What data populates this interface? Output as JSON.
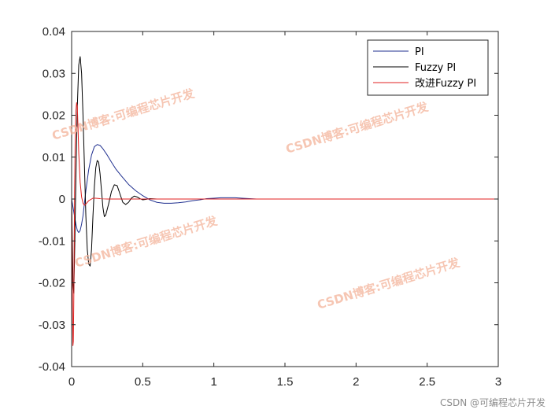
{
  "chart_data": {
    "type": "line",
    "xlim": [
      0,
      3
    ],
    "ylim": [
      -0.04,
      0.04
    ],
    "xticks": [
      0,
      0.5,
      1,
      1.5,
      2,
      2.5,
      3
    ],
    "xtick_labels": [
      "0",
      "0.5",
      "1",
      "1.5",
      "2",
      "2.5",
      "3"
    ],
    "yticks": [
      0.04,
      0.03,
      0.02,
      0.01,
      0,
      -0.01,
      -0.02,
      -0.03,
      -0.04
    ],
    "ytick_labels": [
      "0.04",
      "0.03",
      "0.02",
      "0.01",
      "0",
      "-0.01",
      "-0.02",
      "-0.03",
      "-0.04"
    ],
    "grid": false,
    "legend_position": "top-right",
    "series": [
      {
        "name": "PI",
        "color": "#1f2f8f",
        "x": [
          0,
          0.01,
          0.02,
          0.03,
          0.04,
          0.05,
          0.06,
          0.07,
          0.08,
          0.09,
          0.1,
          0.12,
          0.14,
          0.16,
          0.18,
          0.2,
          0.22,
          0.25,
          0.28,
          0.31,
          0.35,
          0.4,
          0.45,
          0.5,
          0.55,
          0.6,
          0.65,
          0.7,
          0.75,
          0.8,
          0.85,
          0.9,
          0.95,
          1.0,
          1.05,
          1.1,
          1.15,
          1.2,
          1.25,
          1.3,
          1.4,
          1.5,
          2.0,
          2.5,
          3.0
        ],
        "y": [
          0,
          -0.002,
          -0.004,
          -0.006,
          -0.0075,
          -0.008,
          -0.0075,
          -0.006,
          -0.004,
          -0.001,
          0.002,
          0.007,
          0.0105,
          0.0125,
          0.013,
          0.0128,
          0.012,
          0.0105,
          0.0088,
          0.0072,
          0.0055,
          0.0035,
          0.002,
          0.0008,
          -0.0002,
          -0.0008,
          -0.001,
          -0.001,
          -0.0009,
          -0.0007,
          -0.0004,
          -0.0002,
          0.0001,
          0.0002,
          0.0003,
          0.0003,
          0.0003,
          0.0002,
          0.0001,
          0,
          0,
          0,
          0,
          0,
          0
        ]
      },
      {
        "name": "Fuzzy PI",
        "color": "#000000",
        "x": [
          0,
          0.005,
          0.01,
          0.015,
          0.02,
          0.03,
          0.04,
          0.05,
          0.06,
          0.07,
          0.08,
          0.09,
          0.1,
          0.11,
          0.12,
          0.13,
          0.14,
          0.15,
          0.16,
          0.17,
          0.18,
          0.19,
          0.2,
          0.21,
          0.22,
          0.23,
          0.24,
          0.26,
          0.28,
          0.3,
          0.32,
          0.34,
          0.36,
          0.38,
          0.4,
          0.42,
          0.44,
          0.46,
          0.48,
          0.5,
          0.52,
          0.55,
          0.6,
          0.7,
          1.0,
          3.0
        ],
        "y": [
          0,
          -0.01,
          -0.02,
          -0.0225,
          -0.015,
          0.005,
          0.022,
          0.032,
          0.034,
          0.03,
          0.02,
          0.008,
          -0.004,
          -0.012,
          -0.0155,
          -0.016,
          -0.012,
          -0.004,
          0.003,
          0.0075,
          0.0092,
          0.0088,
          0.006,
          0.002,
          -0.002,
          -0.0042,
          -0.0038,
          -0.0012,
          0.0018,
          0.0034,
          0.0032,
          0.0012,
          -0.0008,
          -0.0013,
          -0.0008,
          0.0002,
          0.0007,
          0.0005,
          0.0001,
          -0.0002,
          -0.0001,
          0.0001,
          0,
          0,
          0,
          0
        ]
      },
      {
        "name": "改进Fuzzy PI",
        "color": "#e02020",
        "x": [
          0,
          0.003,
          0.006,
          0.009,
          0.012,
          0.015,
          0.018,
          0.021,
          0.025,
          0.03,
          0.035,
          0.04,
          0.045,
          0.05,
          0.06,
          0.07,
          0.08,
          0.09,
          0.1,
          0.11,
          0.12,
          0.13,
          0.14,
          0.15,
          0.17,
          0.2,
          0.25,
          0.3,
          0.4,
          1.0,
          3.0
        ],
        "y": [
          0,
          -0.01,
          -0.025,
          -0.035,
          -0.034,
          -0.025,
          -0.012,
          0.002,
          0.014,
          0.021,
          0.023,
          0.022,
          0.017,
          0.011,
          0.004,
          0.0005,
          -0.001,
          -0.0015,
          -0.0012,
          -0.0008,
          -0.0004,
          -0.0002,
          0,
          0.0002,
          0.0002,
          0.0001,
          0,
          0,
          0,
          0,
          0
        ]
      }
    ]
  },
  "watermarks": [
    "CSDN博客:可编程芯片开发",
    "CSDN博客:可编程芯片开发",
    "CSDN博客:可编程芯片开发",
    "CSDN博客:可编程芯片开发"
  ],
  "credit": "CSDN @可编程芯片开发"
}
